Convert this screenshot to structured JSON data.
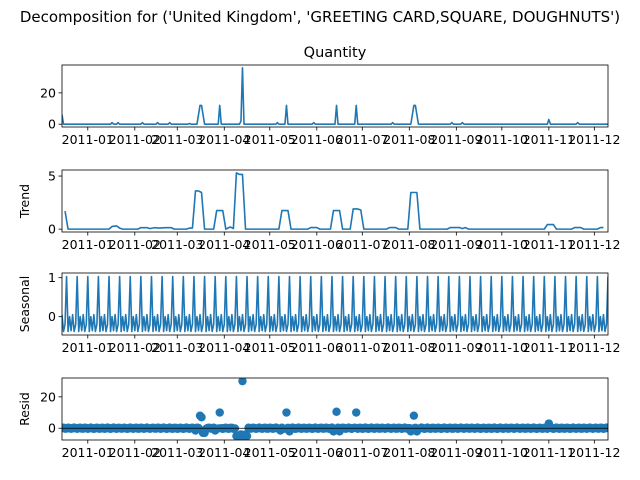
{
  "figure": {
    "suptitle": "Decomposition for ('United Kingdom', 'GREETING CARD,SQUARE, DOUGHNUTS')"
  },
  "colors": {
    "series": "#1f77b4"
  },
  "chart_data": [
    {
      "id": "observed",
      "type": "line",
      "title": "Quantity",
      "ylabel": "",
      "xlim": [
        "2010-12-15",
        "2011-12-10"
      ],
      "ylim": [
        -1.8,
        37.8
      ],
      "yticks": [
        0,
        20
      ],
      "xticks": [
        "2011-01",
        "2011-02",
        "2011-03",
        "2011-04",
        "2011-05",
        "2011-06",
        "2011-07",
        "2011-08",
        "2011-09",
        "2011-10",
        "2011-11",
        "2011-12"
      ],
      "baseline": 0,
      "points": [
        [
          "2010-12-15",
          6
        ],
        [
          "2010-12-16",
          0
        ],
        [
          "2011-01-16",
          0
        ],
        [
          "2011-01-17",
          1
        ],
        [
          "2011-01-18",
          0
        ],
        [
          "2011-01-20",
          0
        ],
        [
          "2011-01-21",
          1
        ],
        [
          "2011-01-22",
          0
        ],
        [
          "2011-02-05",
          0
        ],
        [
          "2011-02-06",
          1
        ],
        [
          "2011-02-07",
          0
        ],
        [
          "2011-02-15",
          0
        ],
        [
          "2011-02-16",
          1
        ],
        [
          "2011-02-17",
          0
        ],
        [
          "2011-02-23",
          0
        ],
        [
          "2011-02-24",
          1
        ],
        [
          "2011-02-25",
          0
        ],
        [
          "2011-03-08",
          0
        ],
        [
          "2011-03-09",
          0.5
        ],
        [
          "2011-03-10",
          0
        ],
        [
          "2011-03-14",
          0
        ],
        [
          "2011-03-16",
          12
        ],
        [
          "2011-03-17",
          12
        ],
        [
          "2011-03-19",
          0
        ],
        [
          "2011-03-28",
          0
        ],
        [
          "2011-03-29",
          12
        ],
        [
          "2011-03-30",
          0
        ],
        [
          "2011-04-11",
          0
        ],
        [
          "2011-04-12",
          2
        ],
        [
          "2011-04-13",
          36
        ],
        [
          "2011-04-14",
          0
        ],
        [
          "2011-05-05",
          0
        ],
        [
          "2011-05-06",
          1
        ],
        [
          "2011-05-07",
          0
        ],
        [
          "2011-05-11",
          0
        ],
        [
          "2011-05-12",
          12
        ],
        [
          "2011-05-13",
          0
        ],
        [
          "2011-05-29",
          0
        ],
        [
          "2011-05-30",
          1
        ],
        [
          "2011-05-31",
          0
        ],
        [
          "2011-06-13",
          0
        ],
        [
          "2011-06-14",
          12
        ],
        [
          "2011-06-15",
          0
        ],
        [
          "2011-06-26",
          0
        ],
        [
          "2011-06-27",
          12
        ],
        [
          "2011-06-28",
          0
        ],
        [
          "2011-07-20",
          0
        ],
        [
          "2011-07-21",
          1
        ],
        [
          "2011-07-22",
          0
        ],
        [
          "2011-08-02",
          0
        ],
        [
          "2011-08-04",
          12
        ],
        [
          "2011-08-05",
          12
        ],
        [
          "2011-08-07",
          0
        ],
        [
          "2011-08-28",
          0
        ],
        [
          "2011-08-29",
          1
        ],
        [
          "2011-08-30",
          0
        ],
        [
          "2011-09-04",
          0
        ],
        [
          "2011-09-05",
          1
        ],
        [
          "2011-09-06",
          0
        ],
        [
          "2011-10-31",
          0
        ],
        [
          "2011-11-01",
          3
        ],
        [
          "2011-11-02",
          0
        ],
        [
          "2011-11-19",
          0
        ],
        [
          "2011-11-20",
          1
        ],
        [
          "2011-11-21",
          0
        ],
        [
          "2011-12-10",
          0
        ]
      ]
    },
    {
      "id": "trend",
      "type": "line",
      "title": "",
      "ylabel": "Trend",
      "xlim": [
        "2010-12-15",
        "2011-12-10"
      ],
      "ylim": [
        -0.27,
        5.57
      ],
      "yticks": [
        0,
        5
      ],
      "xticks": [
        "2011-01",
        "2011-02",
        "2011-03",
        "2011-04",
        "2011-05",
        "2011-06",
        "2011-07",
        "2011-08",
        "2011-09",
        "2011-10",
        "2011-11",
        "2011-12"
      ],
      "baseline": 0,
      "points": [
        [
          "2010-12-17",
          1.7
        ],
        [
          "2010-12-19",
          0
        ],
        [
          "2011-01-15",
          0
        ],
        [
          "2011-01-17",
          0.25
        ],
        [
          "2011-01-20",
          0.3
        ],
        [
          "2011-01-22",
          0.1
        ],
        [
          "2011-01-24",
          0
        ],
        [
          "2011-02-03",
          0
        ],
        [
          "2011-02-05",
          0.14
        ],
        [
          "2011-02-09",
          0.14
        ],
        [
          "2011-02-11",
          0.05
        ],
        [
          "2011-02-14",
          0.14
        ],
        [
          "2011-02-17",
          0.1
        ],
        [
          "2011-02-21",
          0.14
        ],
        [
          "2011-02-25",
          0.14
        ],
        [
          "2011-02-27",
          0
        ],
        [
          "2011-03-07",
          0
        ],
        [
          "2011-03-09",
          0.1
        ],
        [
          "2011-03-11",
          0.1
        ],
        [
          "2011-03-13",
          3.6
        ],
        [
          "2011-03-15",
          3.6
        ],
        [
          "2011-03-17",
          3.45
        ],
        [
          "2011-03-19",
          0
        ],
        [
          "2011-03-25",
          0
        ],
        [
          "2011-03-27",
          1.75
        ],
        [
          "2011-03-31",
          1.75
        ],
        [
          "2011-04-02",
          0
        ],
        [
          "2011-04-05",
          0.2
        ],
        [
          "2011-04-07",
          0.05
        ],
        [
          "2011-04-09",
          5.3
        ],
        [
          "2011-04-11",
          5.15
        ],
        [
          "2011-04-13",
          5.15
        ],
        [
          "2011-04-15",
          0
        ],
        [
          "2011-05-07",
          0
        ],
        [
          "2011-05-09",
          1.75
        ],
        [
          "2011-05-13",
          1.75
        ],
        [
          "2011-05-15",
          0
        ],
        [
          "2011-05-26",
          0
        ],
        [
          "2011-05-28",
          0.15
        ],
        [
          "2011-06-01",
          0.15
        ],
        [
          "2011-06-03",
          0
        ],
        [
          "2011-06-10",
          0
        ],
        [
          "2011-06-12",
          1.75
        ],
        [
          "2011-06-16",
          1.75
        ],
        [
          "2011-06-18",
          0
        ],
        [
          "2011-06-23",
          0
        ],
        [
          "2011-06-25",
          1.9
        ],
        [
          "2011-06-28",
          1.9
        ],
        [
          "2011-06-30",
          1.8
        ],
        [
          "2011-07-02",
          0
        ],
        [
          "2011-07-17",
          0
        ],
        [
          "2011-07-19",
          0.15
        ],
        [
          "2011-07-23",
          0.15
        ],
        [
          "2011-07-25",
          0
        ],
        [
          "2011-07-31",
          0
        ],
        [
          "2011-08-02",
          3.45
        ],
        [
          "2011-08-06",
          3.45
        ],
        [
          "2011-08-08",
          0
        ],
        [
          "2011-08-26",
          0
        ],
        [
          "2011-08-28",
          0.15
        ],
        [
          "2011-09-03",
          0.15
        ],
        [
          "2011-09-05",
          0.05
        ],
        [
          "2011-09-07",
          0.15
        ],
        [
          "2011-09-09",
          0
        ],
        [
          "2011-10-29",
          0
        ],
        [
          "2011-10-31",
          0.43
        ],
        [
          "2011-11-04",
          0.43
        ],
        [
          "2011-11-06",
          0
        ],
        [
          "2011-11-16",
          0
        ],
        [
          "2011-11-18",
          0.15
        ],
        [
          "2011-11-22",
          0.15
        ],
        [
          "2011-11-24",
          0
        ],
        [
          "2011-12-03",
          0
        ],
        [
          "2011-12-05",
          0.15
        ],
        [
          "2011-12-07",
          0.15
        ]
      ]
    },
    {
      "id": "seasonal",
      "type": "line",
      "title": "",
      "ylabel": "Seasonal",
      "xlim": [
        "2010-12-15",
        "2011-12-10"
      ],
      "ylim": [
        -0.47,
        1.12
      ],
      "yticks": [
        0,
        1
      ],
      "xticks": [
        "2011-01",
        "2011-02",
        "2011-03",
        "2011-04",
        "2011-05",
        "2011-06",
        "2011-07",
        "2011-08",
        "2011-09",
        "2011-10",
        "2011-11",
        "2011-12"
      ],
      "period_days": 7,
      "start": "2010-12-15",
      "pattern": [
        0.05,
        -0.38,
        -0.2,
        1.03,
        -0.38,
        0.0,
        -0.36
      ]
    },
    {
      "id": "resid",
      "type": "scatter",
      "title": "",
      "ylabel": "Resid",
      "xlim": [
        "2010-12-15",
        "2011-12-10"
      ],
      "ylim": [
        -7.5,
        32.0
      ],
      "yticks": [
        0,
        20
      ],
      "xticks": [
        "2011-01",
        "2011-02",
        "2011-03",
        "2011-04",
        "2011-05",
        "2011-06",
        "2011-07",
        "2011-08",
        "2011-09",
        "2011-10",
        "2011-11",
        "2011-12"
      ],
      "baseline": 0,
      "points": [
        [
          "2011-03-16",
          8
        ],
        [
          "2011-03-17",
          7
        ],
        [
          "2011-03-29",
          10
        ],
        [
          "2011-04-13",
          30
        ],
        [
          "2011-05-12",
          10
        ],
        [
          "2011-06-14",
          10.5
        ],
        [
          "2011-06-27",
          10
        ],
        [
          "2011-08-04",
          8
        ],
        [
          "2011-11-01",
          3
        ],
        [
          "2011-03-18",
          -3
        ],
        [
          "2011-03-19",
          -3
        ],
        [
          "2011-04-09",
          -5
        ],
        [
          "2011-04-10",
          -5
        ],
        [
          "2011-04-11",
          -5
        ],
        [
          "2011-04-12",
          -4
        ],
        [
          "2011-04-14",
          -5
        ],
        [
          "2011-04-15",
          -4
        ],
        [
          "2011-04-16",
          -5
        ],
        [
          "2011-05-14",
          -2
        ],
        [
          "2011-06-12",
          -2
        ],
        [
          "2011-06-16",
          -2
        ],
        [
          "2011-08-02",
          -2
        ],
        [
          "2011-08-06",
          -2
        ],
        [
          "2011-03-13",
          -1.5
        ],
        [
          "2011-03-26",
          -1.5
        ],
        [
          "2011-05-08",
          -1.5
        ]
      ]
    }
  ]
}
